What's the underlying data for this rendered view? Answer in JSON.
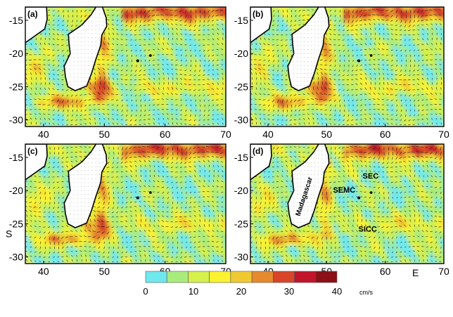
{
  "chart_data": [
    {
      "type": "heatmap",
      "panel_label": "(a)",
      "x_ticks": [
        40,
        50,
        60,
        70
      ],
      "y_ticks": [
        -15,
        -20,
        -25,
        -30
      ],
      "xlim": [
        37,
        70
      ],
      "ylim": [
        -31,
        -13
      ],
      "annotations": []
    },
    {
      "type": "heatmap",
      "panel_label": "(b)",
      "x_ticks": [
        40,
        50,
        60,
        70
      ],
      "y_ticks": [
        -15,
        -20,
        -25,
        -30
      ],
      "xlim": [
        37,
        70
      ],
      "ylim": [
        -31,
        -13
      ],
      "annotations": []
    },
    {
      "type": "heatmap",
      "panel_label": "(c)",
      "x_ticks": [
        40,
        50,
        60,
        70
      ],
      "y_ticks": [
        -15,
        -20,
        -25,
        -30
      ],
      "xlim": [
        37,
        70
      ],
      "ylim": [
        -31,
        -13
      ],
      "ylabel": "S",
      "annotations": []
    },
    {
      "type": "heatmap",
      "panel_label": "(d)",
      "x_ticks": [
        40,
        50,
        60,
        70
      ],
      "y_ticks": [
        -15,
        -20,
        -25,
        -30
      ],
      "xlim": [
        37,
        70
      ],
      "ylim": [
        -31,
        -13
      ],
      "xlabel": "E",
      "annotations": [
        {
          "text": "SEC",
          "x": 57.5,
          "y": -18.2
        },
        {
          "text": "SEMC",
          "x": 53,
          "y": -20.3
        },
        {
          "text": "SICC",
          "x": 57,
          "y": -26.2
        },
        {
          "text": "Madagascar",
          "x": 46.5,
          "y": -21,
          "rotated": true
        }
      ]
    }
  ],
  "colorbar": {
    "bins": [
      0,
      5,
      10,
      15,
      20,
      25,
      30,
      35,
      40
    ],
    "colors": [
      "#6fe8ee",
      "#a9ec7e",
      "#d6f04c",
      "#fbf230",
      "#f0c832",
      "#e68a2e",
      "#d8452a",
      "#c0142a",
      "#8b1017"
    ],
    "tick_values": [
      0,
      10,
      20,
      30,
      40
    ],
    "tick_labels": [
      "0",
      "10",
      "20",
      "30",
      "40"
    ],
    "unit": "cm/s"
  },
  "colors": {
    "land": "#ffffff",
    "coast": "#000000",
    "arrow": "#1a1a1a"
  }
}
